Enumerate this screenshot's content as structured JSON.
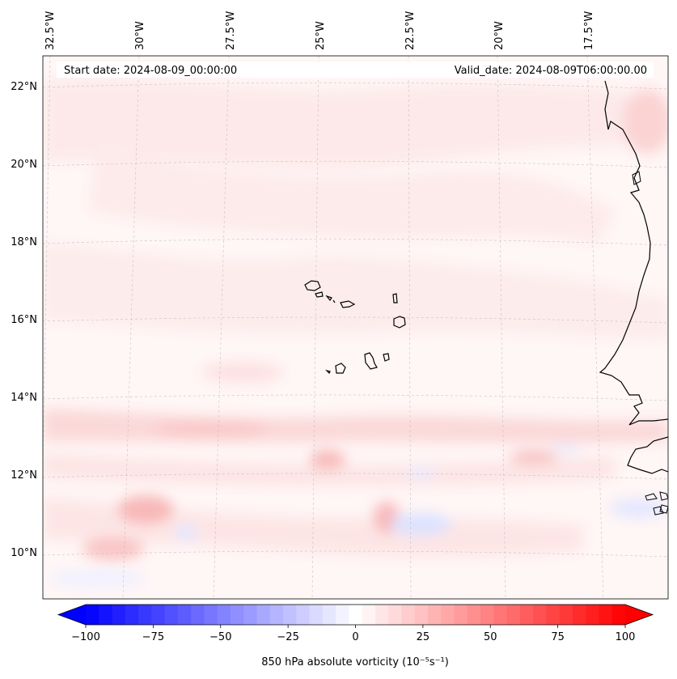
{
  "header": {
    "start_date": "Start date: 2024-08-09_00:00:00",
    "valid_date": "Valid_date: 2024-08-09T06:00:00.00"
  },
  "map": {
    "longitude_labels": [
      "32.5°W",
      "30°W",
      "27.5°W",
      "25°W",
      "22.5°W",
      "20°W",
      "17.5°W"
    ],
    "latitude_labels": [
      "22°N",
      "20°N",
      "18°N",
      "16°N",
      "14°N",
      "12°N",
      "10°N"
    ],
    "extent": {
      "lon_min": -33.0,
      "lon_max": -15.0,
      "lat_min": 8.8,
      "lat_max": 22.8
    },
    "field_colors": {
      "light_red": "#fde6e6",
      "medium_red": "#fbd0d0",
      "near_white": "#fff6f6",
      "light_blue": "#e8ecff"
    }
  },
  "colorbar": {
    "label": "850 hPa absolute vorticity (10⁻⁵s⁻¹)",
    "ticks": [
      "−100",
      "−75",
      "−50",
      "−25",
      "0",
      "25",
      "50",
      "75",
      "100"
    ],
    "tick_values": [
      -100,
      -75,
      -50,
      -25,
      0,
      25,
      50,
      75,
      100
    ],
    "range": [
      -100,
      100
    ],
    "levels": 41,
    "colormap": "bwr",
    "color_min": "#0000ff",
    "color_mid": "#ffffff",
    "color_max": "#ff0000"
  }
}
